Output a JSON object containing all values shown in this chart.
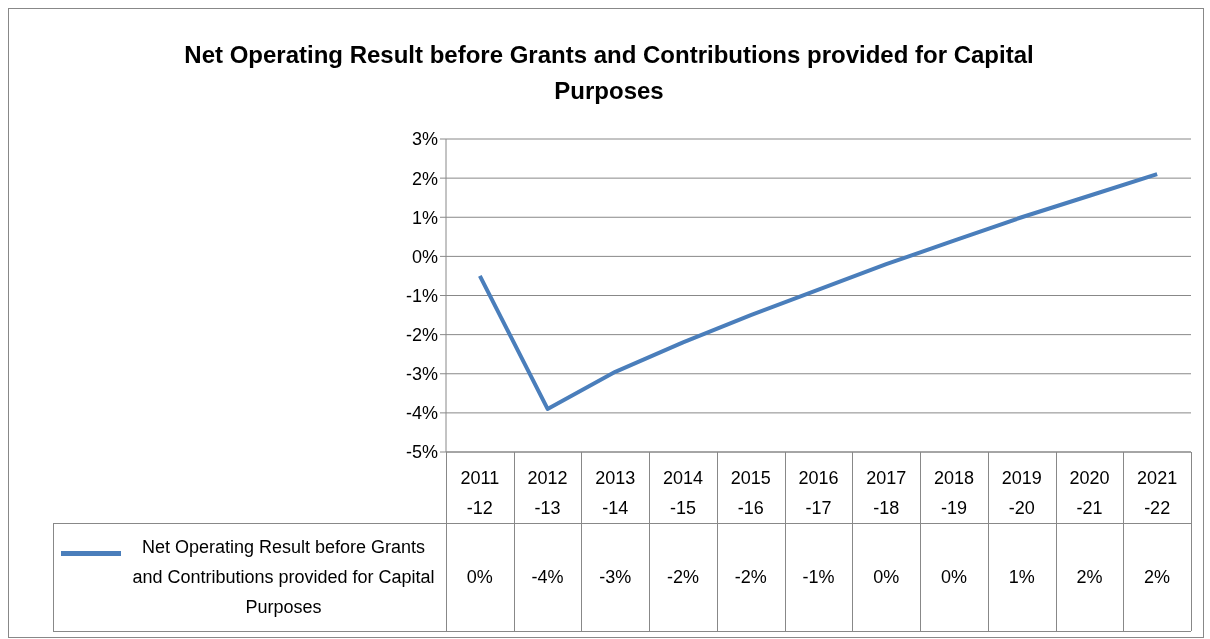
{
  "chart_data": {
    "type": "line",
    "title": "Net Operating Result before Grants and Contributions provided for Capital Purposes",
    "categories": [
      "2011-12",
      "2012-13",
      "2013-14",
      "2014-15",
      "2015-16",
      "2016-17",
      "2017-18",
      "2018-19",
      "2019-20",
      "2020-21",
      "2021-22"
    ],
    "series": [
      {
        "name": "Net Operating Result before Grants and Contributions provided for Capital Purposes",
        "color": "#4a7ebb",
        "values": [
          -0.5,
          -3.9,
          -2.95,
          -2.2,
          -1.5,
          -0.85,
          -0.2,
          0.4,
          1.0,
          1.55,
          2.1
        ],
        "value_labels": [
          "0%",
          "-4%",
          "-3%",
          "-2%",
          "-2%",
          "-1%",
          "0%",
          "0%",
          "1%",
          "2%",
          "2%"
        ]
      }
    ],
    "ylim": [
      -5,
      3
    ],
    "yticks": [
      {
        "value": -5,
        "label": "-5%"
      },
      {
        "value": -4,
        "label": "-4%"
      },
      {
        "value": -3,
        "label": "-3%"
      },
      {
        "value": -2,
        "label": "-2%"
      },
      {
        "value": -1,
        "label": "-1%"
      },
      {
        "value": 0,
        "label": "0%"
      },
      {
        "value": 1,
        "label": "1%"
      },
      {
        "value": 2,
        "label": "2%"
      },
      {
        "value": 3,
        "label": "3%"
      }
    ],
    "grid": "y",
    "legend": "bottom",
    "marker": "none",
    "line_style": "solid"
  }
}
